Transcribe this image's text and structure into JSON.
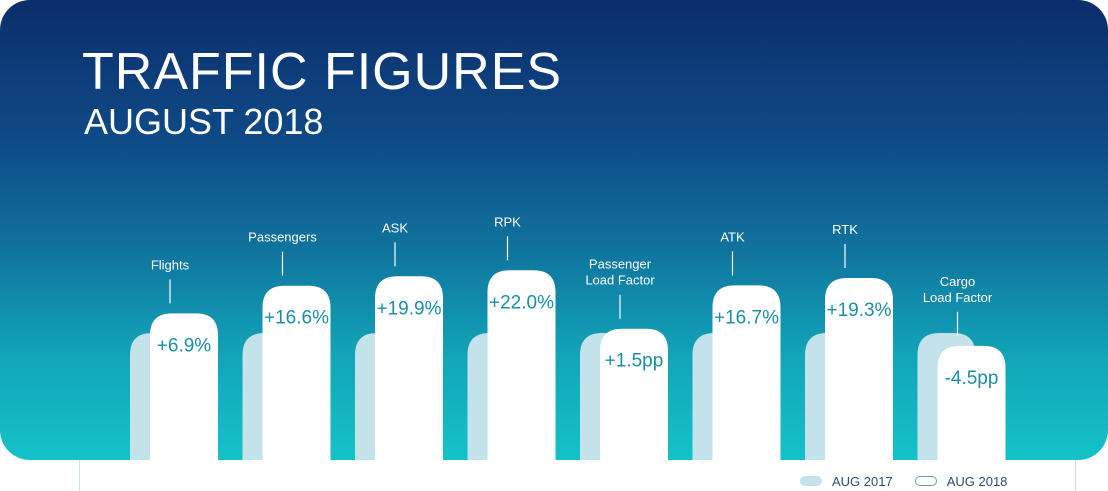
{
  "title": "TRAFFIC FIGURES",
  "subtitle": "AUGUST 2018",
  "chart_data": {
    "type": "bar",
    "categories": [
      "Flights",
      "Passengers",
      "ASK",
      "RPK",
      "Passenger Load Factor",
      "ATK",
      "RTK",
      "Cargo Load Factor"
    ],
    "category_lines": [
      [
        "Flights"
      ],
      [
        "Passengers"
      ],
      [
        "ASK"
      ],
      [
        "RPK"
      ],
      [
        "Passenger",
        "Load Factor"
      ],
      [
        "ATK"
      ],
      [
        "RTK"
      ],
      [
        "Cargo",
        "Load Factor"
      ]
    ],
    "series": [
      {
        "name": "AUG 2017",
        "values": [
          100,
          100,
          100,
          100,
          100,
          100,
          100,
          100
        ]
      },
      {
        "name": "AUG 2018",
        "values": [
          106.9,
          116.6,
          119.9,
          122.0,
          101.5,
          116.7,
          119.3,
          95.5
        ]
      }
    ],
    "change_labels": [
      "+6.9%",
      "+16.6%",
      "+19.9%",
      "+22.0%",
      "+1.5pp",
      "+16.7%",
      "+19.3%",
      "-4.5pp"
    ],
    "colors": {
      "aug_2017": "#c3e2ea",
      "aug_2018": "#ffffff",
      "label_text": "#1a8fa5",
      "background_top": "#0b2d6b",
      "background_bottom": "#14c2c8"
    },
    "legend_position": "bottom-right",
    "grid": false
  },
  "legend": {
    "aug_2017": "AUG 2017",
    "aug_2018": "AUG 2018"
  }
}
